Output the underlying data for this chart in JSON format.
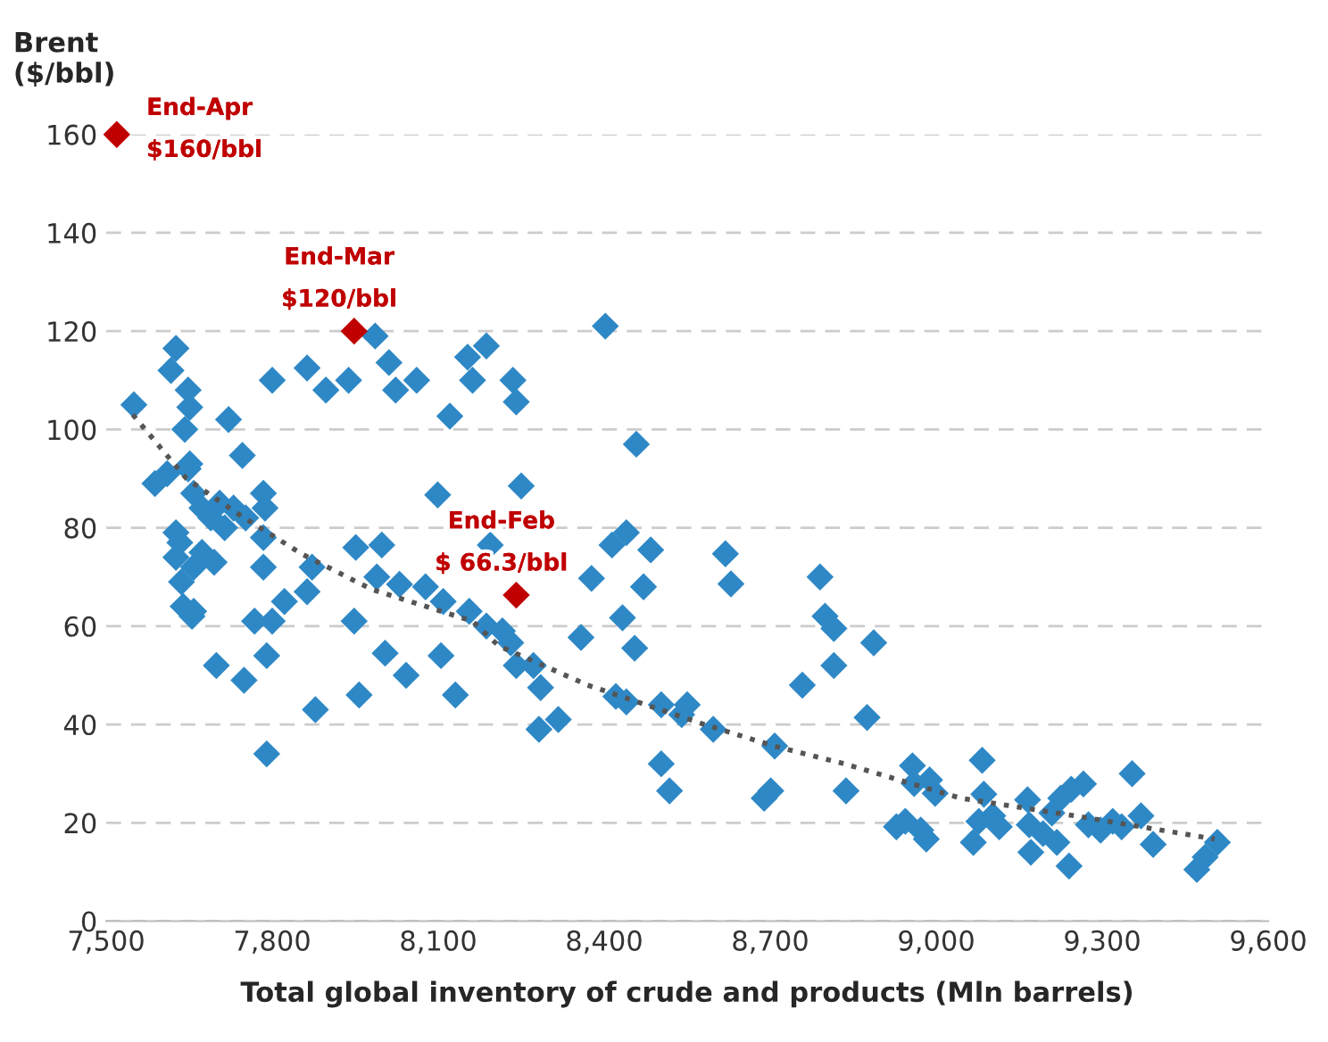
{
  "chart_data": {
    "type": "scatter",
    "xlabel": "Total global inventory of crude and products (Mln barrels)",
    "ylabel": "Brent\n($/bbl)",
    "xlim": [
      7500,
      9600
    ],
    "xticks": [
      {
        "value": 7500,
        "label": "7,500"
      },
      {
        "value": 7800,
        "label": "7,800"
      },
      {
        "value": 8100,
        "label": "8,100"
      },
      {
        "value": 8400,
        "label": "8,400"
      },
      {
        "value": 8700,
        "label": "8,700"
      },
      {
        "value": 9000,
        "label": "9,000"
      },
      {
        "value": 9300,
        "label": "9,300"
      },
      {
        "value": 9600,
        "label": "9,600"
      }
    ],
    "ylim": [
      0,
      160
    ],
    "yticks": [
      0,
      20,
      40,
      60,
      80,
      100,
      120,
      140,
      160
    ],
    "grid": "y",
    "legend": false,
    "marker": "diamond",
    "series": [
      {
        "color": "#2e88c6",
        "x": [
          7699,
          7749,
          7790,
          7790,
          7878,
          7957,
          8004,
          8042,
          8105,
          8131,
          7948,
          7863,
          7872,
          7951,
          7998,
          7989,
          8030,
          8077,
          8109,
          8156,
          8187,
          8194,
          8099,
          7784,
          7800,
          7822,
          7768,
          7658,
          7636,
          7721,
          7746,
          7651,
          7642,
          7550,
          7626,
          7617,
          7648,
          7651,
          7800,
          7863,
          7897,
          7938,
          7986,
          8011,
          8023,
          8061,
          8121,
          8153,
          8187,
          8162,
          8235,
          8241,
          8402,
          8458,
          8250,
          8216,
          8231,
          8241,
          8272,
          8285,
          8282,
          8317,
          8358,
          8377,
          8414,
          8440,
          8484,
          8471,
          8433,
          8455,
          8421,
          8440,
          8503,
          8550,
          8540,
          8597,
          8503,
          8619,
          8629,
          8708,
          8790,
          8799,
          8815,
          8815,
          8758,
          8875,
          8887,
          8518,
          8837,
          8957,
          8988,
          8960,
          8998,
          8928,
          8944,
          8972,
          8982,
          9083,
          9086,
          9077,
          9067,
          9102,
          9114,
          9165,
          9168,
          9171,
          9193,
          9209,
          9225,
          9244,
          9266,
          9240,
          9218,
          9275,
          9297,
          9319,
          9335,
          9354,
          9370,
          9392,
          9471,
          9486,
          9508,
          8701,
          8689,
          7588,
          7610,
          7648,
          7658,
          7673,
          7689,
          7705,
          7714,
          7730,
          7752,
          7784,
          7787,
          7784,
          7626,
          7633,
          7626,
          7658,
          7673,
          7695,
          7639,
          7655
        ],
        "values": [
          52,
          49,
          54,
          34,
          43,
          46,
          54.5,
          50,
          54,
          46,
          61,
          67,
          72,
          76,
          76.5,
          70,
          68.5,
          68,
          65,
          63,
          60,
          76.5,
          86.7,
          72,
          61,
          65,
          61,
          63,
          69,
          102,
          94.7,
          93,
          100,
          105,
          116.5,
          112,
          108,
          104.5,
          110,
          112.5,
          108,
          110,
          119,
          113.6,
          108,
          110,
          102.7,
          114.7,
          117,
          110,
          110,
          105.6,
          121,
          97,
          88.5,
          59,
          56.6,
          52,
          52,
          47.5,
          39,
          41,
          57.7,
          69.7,
          76.5,
          79,
          75.5,
          68,
          61.7,
          55.5,
          45.7,
          44.6,
          44,
          44,
          42,
          39,
          32,
          74.7,
          68.6,
          35.6,
          70,
          62,
          59.5,
          52,
          48,
          41.4,
          56.6,
          26.5,
          26.5,
          31.6,
          28.7,
          28,
          26,
          19.2,
          20.3,
          18.5,
          16.7,
          32.7,
          25.8,
          20.3,
          16,
          21.4,
          19.2,
          24.7,
          19.6,
          14,
          17.8,
          22,
          25,
          26.8,
          27.9,
          11.2,
          16,
          19.6,
          18.5,
          20.3,
          19.2,
          30,
          21.4,
          15.6,
          10.5,
          13,
          16,
          26.5,
          25,
          89,
          91,
          92,
          87,
          84,
          82,
          85,
          80,
          84,
          82,
          87,
          84,
          78,
          79,
          77,
          74,
          72,
          75,
          73,
          64,
          62
        ]
      },
      {
        "color": "#c00000",
        "x": [
          7519,
          7948,
          8241
        ],
        "values": [
          160,
          120,
          66.3
        ]
      },
      {
        "type": "line",
        "color": "#555555",
        "marker": "none",
        "line_style": "dotted",
        "x": [
          7548,
          7645,
          7740,
          7853,
          7979,
          8162,
          8209,
          8370,
          8581,
          8707,
          8834,
          9044,
          9252,
          9503
        ],
        "values": [
          103,
          90,
          82.7,
          74.7,
          67.5,
          61,
          56,
          48,
          40,
          35.6,
          32,
          25,
          21.4,
          16.7
        ]
      }
    ],
    "annotations": [
      {
        "text": "End-Apr\n\n$160/bbl",
        "x": 7519,
        "y": 160
      },
      {
        "text": "End-Mar\n\n$120/bbl",
        "x": 7948,
        "y": 120
      },
      {
        "text": "End-Feb\n\n$ 66.3/bbl",
        "x": 8241,
        "y": 66.3
      }
    ]
  }
}
